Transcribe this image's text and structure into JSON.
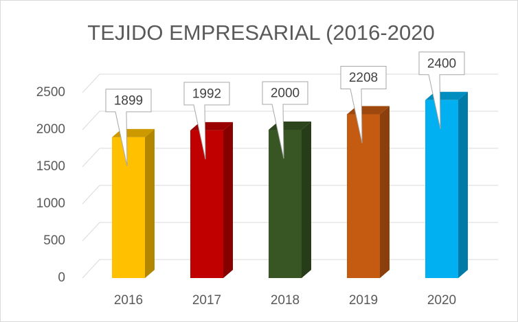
{
  "chart_data": {
    "type": "bar3d",
    "title": "TEJIDO EMPRESARIAL (2016-2020",
    "categories": [
      "2016",
      "2017",
      "2018",
      "2019",
      "2020"
    ],
    "values": [
      1899,
      1992,
      2000,
      2208,
      2400
    ],
    "colors": [
      "#ffc000",
      "#c00000",
      "#375623",
      "#c55a11",
      "#00b0f0"
    ],
    "ylim": [
      0,
      2500
    ],
    "yticks": [
      0,
      500,
      1000,
      1500,
      2000,
      2500
    ],
    "grid": true
  }
}
